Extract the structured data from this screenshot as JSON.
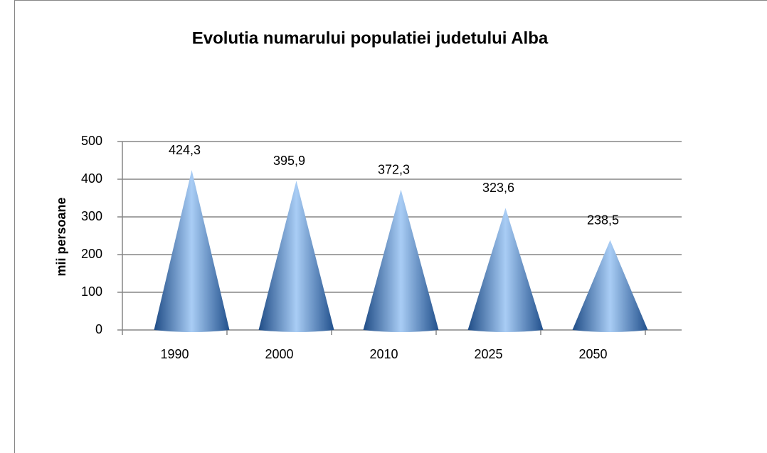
{
  "chart_data": {
    "type": "cone",
    "title": "Evolutia numarului populatiei judetului Alba",
    "y_label": "mii persoane",
    "categories": [
      "1990",
      "2000",
      "2010",
      "2025",
      "2050"
    ],
    "values": [
      424.3,
      395.9,
      372.3,
      323.6,
      238.5
    ],
    "value_labels": [
      "424,3",
      "395,9",
      "372,3",
      "323,6",
      "238,5"
    ],
    "color": "#4f81bd",
    "ylim": [
      0,
      500
    ],
    "yticks": [
      0,
      100,
      200,
      300,
      400,
      500
    ],
    "grid": true
  }
}
